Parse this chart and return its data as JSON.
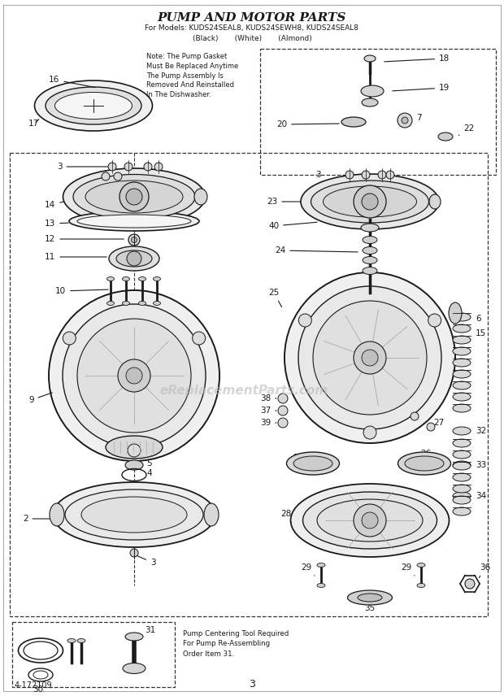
{
  "title": "PUMP AND MOTOR PARTS",
  "subtitle_line1": "For Models: KUDS24SEAL8, KUDS24SEWH8, KUDS24SEAL8",
  "subtitle_line2": "(Black)    (White)    (Almond)",
  "note_text": "Note: The Pump Gasket\nMust Be Replaced Anytime\nThe Pump Assembly Is\nRemoved And Reinstalled\nIn The Dishwasher.",
  "pump_centering_text": "Pump Centering Tool Required\nFor Pump Re-Assembling\nOrder Item 31.",
  "footer_left": "4-172109",
  "footer_center": "3",
  "bg_color": "#ffffff",
  "line_color": "#1a1a1a",
  "dashed_color": "#333333",
  "watermark_color": "#bbbbbb",
  "watermark_text": "eReplacementParts.com"
}
